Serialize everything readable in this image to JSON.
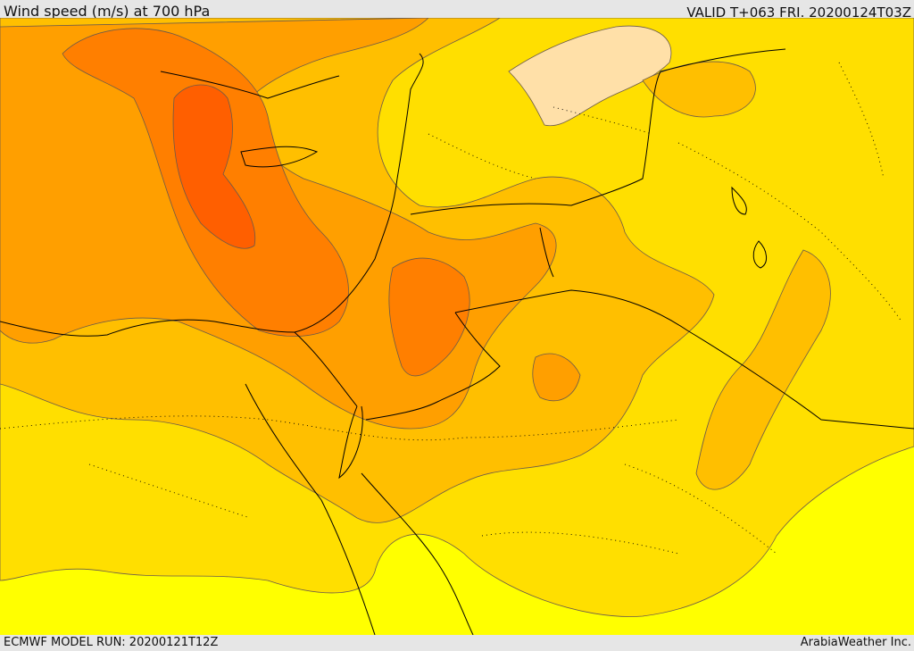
{
  "header": {
    "title": "Wind speed (m/s) at 700 hPa",
    "valid_time": "VALID T+063 FRI. 20200124T03Z"
  },
  "footer": {
    "model_run": "ECMWF MODEL RUN: 20200121T12Z",
    "credit": "ArabiaWeather Inc."
  },
  "colors": {
    "yellow_light": "#ffff00",
    "yellow": "#ffdf00",
    "gold": "#ffbf00",
    "orange": "#ff9f00",
    "dark_orange": "#ff7f00",
    "red_orange": "#ff5f00",
    "pale": "#ffe0a8",
    "border": "#000000",
    "contour": "#6b5a4a"
  }
}
